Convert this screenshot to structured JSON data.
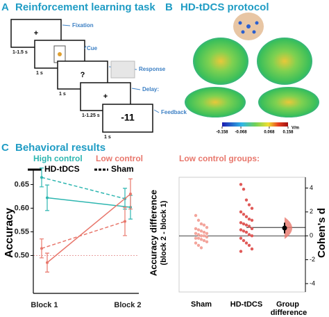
{
  "panel_a": {
    "letter": "A",
    "title": "Reinforcement learning task",
    "screens": [
      {
        "content": "+",
        "label": "Fixation",
        "duration": "1-1.5 s"
      },
      {
        "label": "Cue",
        "duration": "1 s"
      },
      {
        "content": "?",
        "label": "Response",
        "duration": "1 s"
      },
      {
        "content": "+",
        "label": "Delay:",
        "duration": "1-1.25 s"
      },
      {
        "content": "-11",
        "label": "Feedback",
        "duration": "1 s"
      }
    ]
  },
  "panel_b": {
    "letter": "B",
    "title": "HD-tDCS protocol",
    "colorbar": {
      "lim": [
        -0.158,
        0.158
      ],
      "ticks": [
        -0.158,
        -0.068,
        0.068,
        0.158
      ],
      "unit": "V/m"
    }
  },
  "panel_c": {
    "letter": "C",
    "title": "Behavioral results"
  },
  "chart_data": [
    {
      "type": "line",
      "ylabel": "Accuracy",
      "categories": [
        "Block 1",
        "Block 2"
      ],
      "ylim": [
        0.42,
        0.68
      ],
      "yticks": [
        {
          "value": 0.5,
          "label": "0.50"
        },
        0.55,
        {
          "value": 0.6,
          "label": "0.60"
        },
        0.65
      ],
      "reference_line": 0.5,
      "legend": {
        "groups": [
          {
            "name": "High control",
            "color": "#2db6b0"
          },
          {
            "name": "Low control",
            "color": "#e8776c"
          }
        ],
        "conditions": [
          {
            "name": "HD-tDCS",
            "dash": "solid"
          },
          {
            "name": "Sham",
            "dash": "dashed"
          }
        ]
      },
      "series": [
        {
          "group": 0,
          "condition": 0,
          "values": [
            0.622,
            0.602
          ],
          "errors": [
            0.027,
            0.025
          ]
        },
        {
          "group": 0,
          "condition": 1,
          "values": [
            0.665,
            0.62
          ],
          "errors": [
            0.02,
            0.022
          ]
        },
        {
          "group": 1,
          "condition": 0,
          "values": [
            0.485,
            0.63
          ],
          "errors": [
            0.02,
            0.032
          ]
        },
        {
          "group": 1,
          "condition": 1,
          "values": [
            0.515,
            0.572
          ],
          "errors": [
            0.02,
            0.03
          ]
        }
      ]
    },
    {
      "type": "estimation",
      "title": "Low control groups:",
      "ylabel": [
        "Accuracy difference",
        "(block 2 - block 1)"
      ],
      "y2label": "Cohen's d",
      "categories": [
        "Sham",
        "HD-tDCS",
        "Group difference"
      ],
      "y2lim": [
        -4.7,
        4.9
      ],
      "y2ticks": [
        -4,
        -2,
        0,
        2,
        4
      ],
      "groups": [
        {
          "color": "#f3a59c",
          "mean": 0,
          "values": [
            1.7,
            1.3,
            1.0,
            0.9,
            0.7,
            0.6,
            0.5,
            0.4,
            0.3,
            0.2,
            0.2,
            0.1,
            0.0,
            0.0,
            -0.1,
            -0.2,
            -0.2,
            -0.3,
            -0.4,
            -0.5,
            -0.6,
            -0.8,
            -1.0
          ]
        },
        {
          "color": "#e05a58",
          "mean": 0.7,
          "values": [
            4.3,
            3.9,
            3.0,
            2.6,
            2.3,
            2.0,
            1.8,
            1.6,
            1.4,
            1.3,
            1.1,
            1.0,
            0.9,
            0.8,
            0.6,
            0.5,
            0.4,
            0.3,
            0.1,
            0.0,
            -0.2,
            -0.4,
            -0.6,
            -0.8,
            -1.1,
            -1.3
          ]
        }
      ],
      "effect": {
        "value": 0.65,
        "ci": [
          0.2,
          1.1
        ],
        "color": "#e8776c"
      }
    }
  ]
}
